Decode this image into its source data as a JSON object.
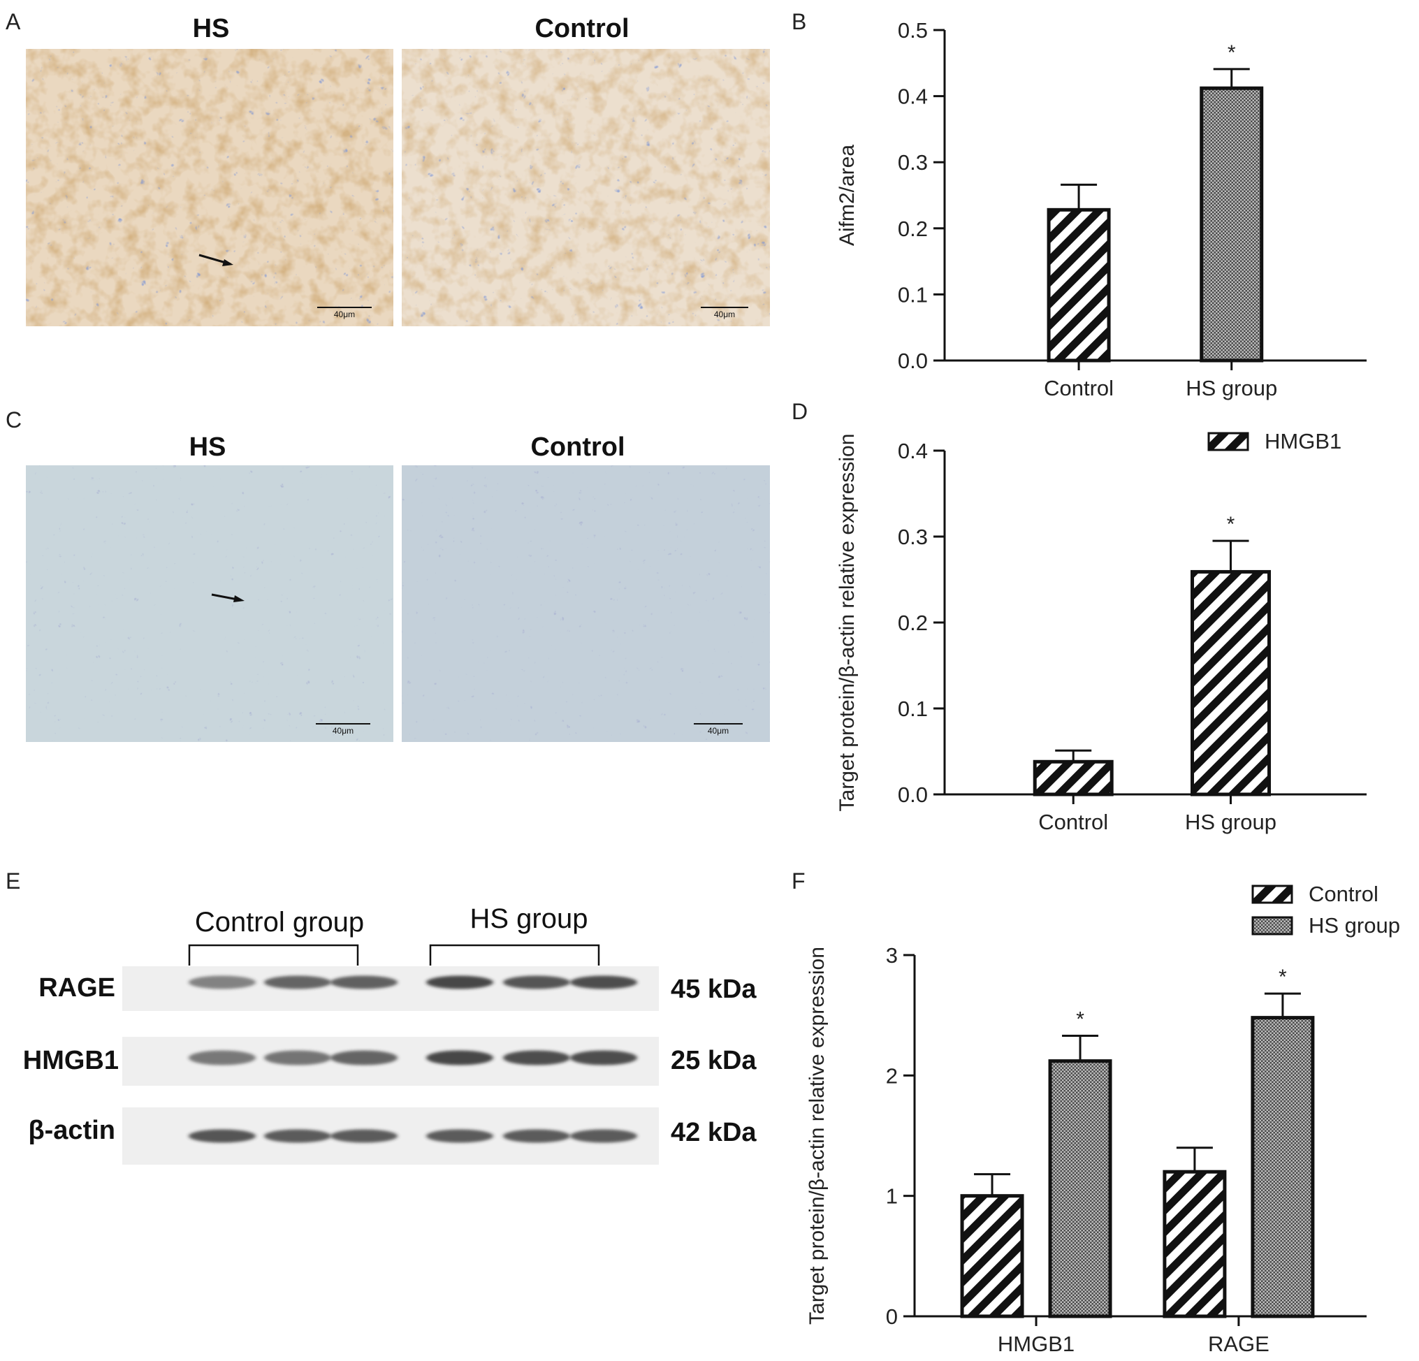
{
  "panels": {
    "A": {
      "letter": "A",
      "images": [
        {
          "title": "HS",
          "scale": "40μm"
        },
        {
          "title": "Control",
          "scale": "40μm"
        }
      ]
    },
    "C": {
      "letter": "C",
      "images": [
        {
          "title": "HS",
          "scale": "40μm"
        },
        {
          "title": "Control",
          "scale": "40μm"
        }
      ]
    },
    "E": {
      "letter": "E",
      "group_labels": [
        "Control group",
        "HS group"
      ],
      "bands": [
        {
          "name": "RAGE",
          "kda": "45 kDa"
        },
        {
          "name": "HMGB1",
          "kda": "25 kDa"
        },
        {
          "name": "β-actin",
          "kda": "42 kDa"
        }
      ]
    },
    "B": {
      "letter": "B"
    },
    "D": {
      "letter": "D"
    },
    "F": {
      "letter": "F"
    }
  },
  "colors": {
    "stain_brown": "#a8733a",
    "stain_blue": "#3d55a8",
    "bar_dark": "#111111"
  },
  "chart_data": [
    {
      "id": "B",
      "type": "bar",
      "categories": [
        "Control",
        "HS group"
      ],
      "series": [
        {
          "values": [
            0.228,
            0.412
          ],
          "errors": [
            0.038,
            0.029
          ],
          "patterns": [
            "diag",
            "check"
          ]
        }
      ],
      "significance": [
        "",
        "*"
      ],
      "ylabel": "Aifm2/area",
      "ylim": [
        0,
        0.5
      ],
      "yticks": [
        "0.0",
        "0.1",
        "0.2",
        "0.3",
        "0.4",
        "0.5"
      ],
      "legend": []
    },
    {
      "id": "D",
      "type": "bar",
      "categories": [
        "Control",
        "HS group"
      ],
      "series": [
        {
          "name": "HMGB1",
          "values": [
            0.038,
            0.259
          ],
          "errors": [
            0.013,
            0.036
          ],
          "patterns": [
            "diag",
            "diag"
          ]
        }
      ],
      "significance": [
        "",
        "*"
      ],
      "ylabel": "Target protein/β-actin relative expression",
      "ylim": [
        0,
        0.4
      ],
      "yticks": [
        "0.0",
        "0.1",
        "0.2",
        "0.3",
        "0.4"
      ],
      "legend": [
        {
          "label": "HMGB1",
          "pattern": "diag"
        }
      ]
    },
    {
      "id": "F",
      "type": "bar",
      "categories": [
        "HMGB1",
        "RAGE"
      ],
      "series": [
        {
          "name": "Control",
          "values": [
            1.0,
            1.2
          ],
          "errors": [
            0.18,
            0.2
          ],
          "patterns": [
            "diag",
            "diag"
          ]
        },
        {
          "name": "HS group",
          "values": [
            2.12,
            2.48
          ],
          "errors": [
            0.21,
            0.2
          ],
          "patterns": [
            "check",
            "check"
          ]
        }
      ],
      "significance": [
        "*",
        "*"
      ],
      "ylabel": "Target protein/β-actin relative expression",
      "ylim": [
        0,
        3
      ],
      "yticks": [
        "0",
        "1",
        "2",
        "3"
      ],
      "legend": [
        {
          "label": "Control",
          "pattern": "diag"
        },
        {
          "label": "HS group",
          "pattern": "check"
        }
      ]
    }
  ]
}
